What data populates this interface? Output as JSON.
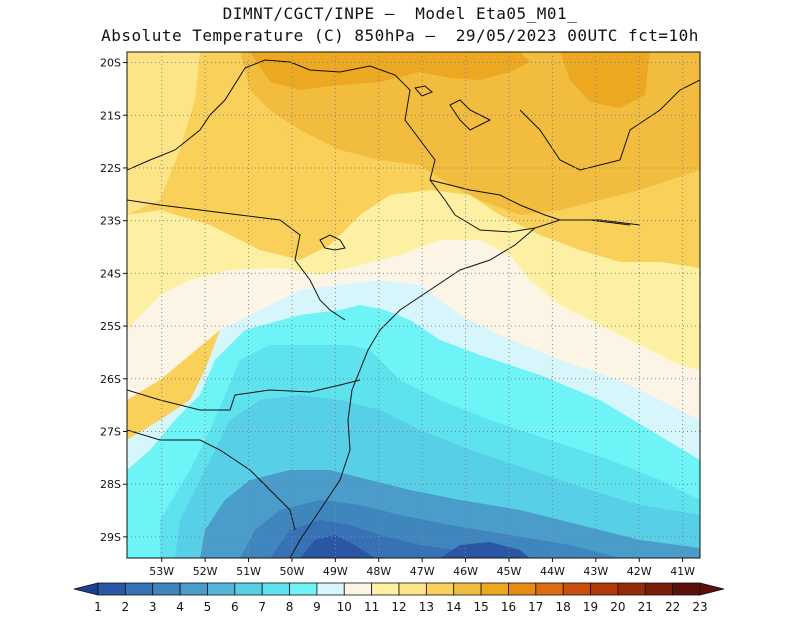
{
  "header": {
    "line1": "DIMNT/CGCT/INPE –  Model Eta05_M01_",
    "line2": "Absolute Temperature (C) 850hPa –  29/05/2023 00UTC fct=10h"
  },
  "map": {
    "lat_labels": [
      "20S",
      "21S",
      "22S",
      "23S",
      "24S",
      "25S",
      "26S",
      "27S",
      "28S",
      "29S"
    ],
    "lon_labels": [
      "53W",
      "52W",
      "51W",
      "50W",
      "49W",
      "48W",
      "47W",
      "46W",
      "45W",
      "44W",
      "43W",
      "42W",
      "41W"
    ],
    "lat_range": [
      -29.4,
      -19.8
    ],
    "lon_range": [
      -53.8,
      -40.6
    ]
  },
  "colorbar": {
    "labels": [
      "1",
      "2",
      "3",
      "4",
      "5",
      "6",
      "7",
      "8",
      "9",
      "10",
      "11",
      "12",
      "13",
      "14",
      "15",
      "16",
      "17",
      "18",
      "19",
      "20",
      "21",
      "22",
      "23"
    ],
    "colors": [
      "#1d3f8f",
      "#2b56a5",
      "#3872b6",
      "#3f86be",
      "#4a9ccb",
      "#52b6da",
      "#57cfe6",
      "#5ee2ee",
      "#6ef4f7",
      "#d7f6fb",
      "#fcf5e6",
      "#fdf0a3",
      "#fde487",
      "#f8d05a",
      "#f2bd3e",
      "#eda822",
      "#e88b16",
      "#df6c10",
      "#cc4e0c",
      "#b3380a",
      "#962a0b",
      "#7a1c0a",
      "#5c1009"
    ]
  },
  "fields": [
    {
      "name": "field-t14",
      "value": "14",
      "color": "#f8d05a"
    },
    {
      "name": "field-t15",
      "value": "15",
      "color": "#f2bd3e"
    },
    {
      "name": "field-t16",
      "value": "16",
      "color": "#eda822"
    },
    {
      "name": "field-t13",
      "value": "13",
      "color": "#fde487"
    },
    {
      "name": "field-t12",
      "value": "12",
      "color": "#fdf0a3"
    },
    {
      "name": "field-t11",
      "value": "11",
      "color": "#fcf5e6"
    },
    {
      "name": "field-t10",
      "value": "10",
      "color": "#d7f6fb"
    },
    {
      "name": "field-t9",
      "value": "9",
      "color": "#6ef4f7"
    },
    {
      "name": "field-t8",
      "value": "8",
      "color": "#5ee2ee"
    },
    {
      "name": "field-t7",
      "value": "7",
      "color": "#57cfe6"
    },
    {
      "name": "field-t6",
      "value": "6",
      "color": "#4a9ccb"
    },
    {
      "name": "field-t5",
      "value": "5",
      "color": "#3f86be"
    },
    {
      "name": "field-t4",
      "value": "4",
      "color": "#3872b6"
    },
    {
      "name": "field-t3",
      "value": "3",
      "color": "#2b56a5"
    }
  ]
}
